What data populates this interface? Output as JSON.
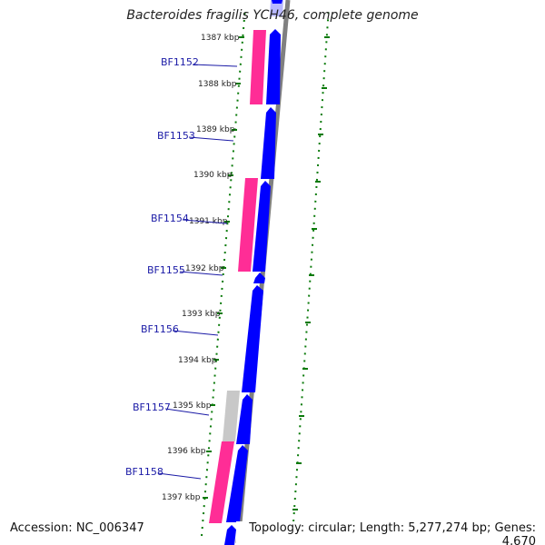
{
  "title": "Bacteroides fragilis YCH46, complete genome",
  "accession": "Accession: NC_006347",
  "summary": "Topology: circular; Length: 5,277,274 bp; Genes: 4,670",
  "ticks": [
    "1387 kbp",
    "1388 kbp",
    "1389 kbp",
    "1390 kbp",
    "1391 kbp",
    "1392 kbp",
    "1393 kbp",
    "1394 kbp",
    "1395 kbp",
    "1396 kbp",
    "1397 kbp"
  ],
  "genes": [
    {
      "name": "BF1152"
    },
    {
      "name": "BF1153"
    },
    {
      "name": "BF1154"
    },
    {
      "name": "BF1155"
    },
    {
      "name": "BF1156"
    },
    {
      "name": "BF1157"
    },
    {
      "name": "BF1158"
    }
  ],
  "colors": {
    "cds": "#0000ff",
    "cds_light": "#b8b8ff",
    "pink": "#ff2d96",
    "grey_feature": "#c8c8c8",
    "backbone": "#808080",
    "dotted_rings": "#0a7a0a",
    "label": "#1a1aa6"
  }
}
